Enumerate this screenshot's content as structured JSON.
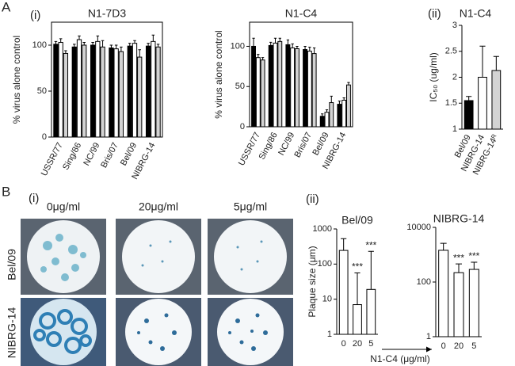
{
  "panel_a": {
    "label": "A",
    "sub_i": "(i)",
    "sub_ii": "(ii)"
  },
  "panel_b": {
    "label": "B",
    "sub_i": "(i)",
    "sub_ii": "(ii)",
    "concentrations": [
      "0μg/ml",
      "20μg/ml",
      "5μg/ml"
    ],
    "strains": [
      "Bel/09",
      "NIBRG-14"
    ],
    "x_axis_title": "N1-C4 (μg/ml)"
  },
  "chart_data": [
    {
      "type": "bar",
      "title": "N1-7D3",
      "ylabel": "% virus alone control",
      "categories": [
        "USSR/77",
        "Sing/86",
        "NC/99",
        "Bris/07",
        "Bel/09",
        "NIBRG-14"
      ],
      "series": [
        {
          "color": "#000000",
          "values": [
            101,
            98,
            100,
            97,
            99,
            99
          ],
          "errors": [
            3,
            3,
            3,
            3,
            3,
            3
          ]
        },
        {
          "color": "#ffffff",
          "values": [
            103,
            106,
            104,
            96,
            102,
            104
          ],
          "errors": [
            4,
            4,
            6,
            4,
            3,
            7
          ]
        },
        {
          "color": "#d3d3d3",
          "values": [
            91,
            100,
            98,
            93,
            87,
            98
          ],
          "errors": [
            3,
            3,
            7,
            5,
            8,
            3
          ]
        }
      ],
      "ylim": [
        0,
        125
      ],
      "yticks": [
        0,
        50,
        100
      ]
    },
    {
      "type": "bar",
      "title": "N1-C4",
      "ylabel": "% virus alone control",
      "categories": [
        "USSR/77",
        "Sing/86",
        "NC/99",
        "Bris/07",
        "Bel/09",
        "NIBRG-14"
      ],
      "series": [
        {
          "color": "#000000",
          "values": [
            100,
            101,
            102,
            96,
            13,
            28
          ],
          "errors": [
            10,
            4,
            6,
            4,
            3,
            4
          ]
        },
        {
          "color": "#ffffff",
          "values": [
            86,
            104,
            98,
            94,
            18,
            33
          ],
          "errors": [
            4,
            6,
            5,
            5,
            3,
            3
          ]
        },
        {
          "color": "#d3d3d3",
          "values": [
            83,
            106,
            97,
            91,
            30,
            52
          ],
          "errors": [
            3,
            4,
            3,
            7,
            8,
            3
          ]
        }
      ],
      "ylim": [
        0,
        130
      ],
      "yticks": [
        0,
        50,
        100
      ]
    },
    {
      "type": "bar",
      "title": "N1-C4",
      "ylabel": "IC₅₀ (ug/ml)",
      "categories": [
        "Bel/09",
        "NIBRG-14",
        "NIBRG-14ᴿ"
      ],
      "values": [
        1.55,
        2.0,
        2.13
      ],
      "errors": [
        0.08,
        0.6,
        0.27
      ],
      "colors": [
        "#000000",
        "#ffffff",
        "#d3d3d3"
      ],
      "ylim": [
        1,
        3
      ],
      "yticks": [
        1,
        1.5,
        2,
        2.5,
        3
      ]
    },
    {
      "type": "bar",
      "title": "Bel/09",
      "ylabel": "Plaque size (μm)",
      "categories": [
        "0",
        "20",
        "5"
      ],
      "values": [
        245,
        7,
        19
      ],
      "errors": [
        285,
        49,
        211
      ],
      "value_annotations": [
        null,
        "***",
        "***"
      ],
      "color": "#ffffff",
      "log_scale": true,
      "ylim": [
        1,
        1000
      ],
      "yticks": [
        1,
        10,
        100,
        1000
      ]
    },
    {
      "type": "bar",
      "title": "NIBRG-14",
      "categories": [
        "0",
        "20",
        "5"
      ],
      "values": [
        1450,
        220,
        290
      ],
      "errors": [
        1150,
        240,
        240
      ],
      "value_annotations": [
        null,
        "***",
        "***"
      ],
      "color": "#ffffff",
      "log_scale": true,
      "ylim": [
        1,
        10000
      ],
      "yticks": [
        1,
        100,
        10000
      ]
    }
  ]
}
